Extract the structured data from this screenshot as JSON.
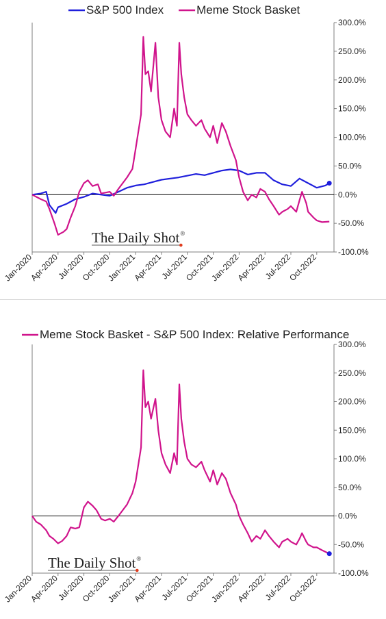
{
  "chart_data": [
    {
      "type": "line",
      "legend_position": "top",
      "y_axis_side": "right",
      "ylim": [
        -100,
        300
      ],
      "y_ticks": [
        -100,
        -50,
        0,
        50,
        100,
        150,
        200,
        250,
        300
      ],
      "y_tick_labels": [
        "-100.0%",
        "-50.0%",
        "0.0%",
        "50.0%",
        "100.0%",
        "150.0%",
        "200.0%",
        "250.0%",
        "300.0%"
      ],
      "xlim": [
        "2020-01",
        "2022-12"
      ],
      "x_tick_labels": [
        "Jan-2020",
        "Apr-2020",
        "Jul-2020",
        "Oct-2020",
        "Jan-2021",
        "Apr-2021",
        "Jul-2021",
        "Oct-2021",
        "Jan-2022",
        "Apr-2022",
        "Jul-2022",
        "Oct-2022"
      ],
      "x_tick_dates": [
        "2020-01",
        "2020-04",
        "2020-07",
        "2020-10",
        "2021-01",
        "2021-04",
        "2021-07",
        "2021-10",
        "2022-01",
        "2022-04",
        "2022-07",
        "2022-10"
      ],
      "zero_line": true,
      "watermark": "The Daily Shot",
      "watermark_mark": "®",
      "series": [
        {
          "name": "S&P 500 Index",
          "color": "#1f1fdc",
          "points": [
            [
              "2020-01",
              0
            ],
            [
              "2020-02",
              2
            ],
            [
              "2020-02-20",
              5
            ],
            [
              "2020-03",
              -18
            ],
            [
              "2020-03-23",
              -32
            ],
            [
              "2020-04",
              -22
            ],
            [
              "2020-05",
              -16
            ],
            [
              "2020-06",
              -8
            ],
            [
              "2020-07",
              -4
            ],
            [
              "2020-08",
              2
            ],
            [
              "2020-09",
              0
            ],
            [
              "2020-10",
              -2
            ],
            [
              "2020-11",
              5
            ],
            [
              "2020-12",
              12
            ],
            [
              "2021-01",
              16
            ],
            [
              "2021-02",
              18
            ],
            [
              "2021-03",
              22
            ],
            [
              "2021-04",
              26
            ],
            [
              "2021-05",
              28
            ],
            [
              "2021-06",
              30
            ],
            [
              "2021-07",
              33
            ],
            [
              "2021-08",
              36
            ],
            [
              "2021-09",
              34
            ],
            [
              "2021-10",
              38
            ],
            [
              "2021-11",
              42
            ],
            [
              "2021-12",
              44
            ],
            [
              "2022-01",
              42
            ],
            [
              "2022-02",
              35
            ],
            [
              "2022-03",
              38
            ],
            [
              "2022-04",
              38
            ],
            [
              "2022-05",
              25
            ],
            [
              "2022-06",
              18
            ],
            [
              "2022-07",
              15
            ],
            [
              "2022-08",
              28
            ],
            [
              "2022-09",
              20
            ],
            [
              "2022-10",
              12
            ],
            [
              "2022-11",
              16
            ],
            [
              "2022-11-15",
              20
            ]
          ],
          "end_marker": true
        },
        {
          "name": "Meme Stock Basket",
          "color": "#d0148c",
          "points": [
            [
              "2020-01",
              0
            ],
            [
              "2020-02",
              -8
            ],
            [
              "2020-02-20",
              -12
            ],
            [
              "2020-03",
              -25
            ],
            [
              "2020-03-20",
              -52
            ],
            [
              "2020-04",
              -70
            ],
            [
              "2020-04-20",
              -65
            ],
            [
              "2020-05",
              -60
            ],
            [
              "2020-05-15",
              -40
            ],
            [
              "2020-06",
              -20
            ],
            [
              "2020-06-15",
              5
            ],
            [
              "2020-07",
              20
            ],
            [
              "2020-07-15",
              25
            ],
            [
              "2020-08",
              15
            ],
            [
              "2020-08-20",
              18
            ],
            [
              "2020-09",
              2
            ],
            [
              "2020-10",
              5
            ],
            [
              "2020-10-15",
              -2
            ],
            [
              "2020-11",
              10
            ],
            [
              "2020-12",
              30
            ],
            [
              "2020-12-20",
              45
            ],
            [
              "2021-01",
              80
            ],
            [
              "2021-01-20",
              140
            ],
            [
              "2021-01-28",
              275
            ],
            [
              "2021-02-05",
              210
            ],
            [
              "2021-02-15",
              215
            ],
            [
              "2021-02-25",
              180
            ],
            [
              "2021-03-10",
              265
            ],
            [
              "2021-03-20",
              170
            ],
            [
              "2021-04",
              130
            ],
            [
              "2021-04-15",
              110
            ],
            [
              "2021-05",
              100
            ],
            [
              "2021-05-15",
              150
            ],
            [
              "2021-05-25",
              120
            ],
            [
              "2021-06-03",
              265
            ],
            [
              "2021-06-10",
              210
            ],
            [
              "2021-06-20",
              170
            ],
            [
              "2021-07",
              140
            ],
            [
              "2021-07-15",
              130
            ],
            [
              "2021-08",
              120
            ],
            [
              "2021-08-20",
              130
            ],
            [
              "2021-09",
              115
            ],
            [
              "2021-09-20",
              100
            ],
            [
              "2021-10",
              120
            ],
            [
              "2021-10-15",
              90
            ],
            [
              "2021-11",
              125
            ],
            [
              "2021-11-15",
              110
            ],
            [
              "2021-12",
              85
            ],
            [
              "2021-12-20",
              60
            ],
            [
              "2022-01",
              30
            ],
            [
              "2022-01-15",
              5
            ],
            [
              "2022-02",
              -10
            ],
            [
              "2022-02-15",
              0
            ],
            [
              "2022-03",
              -5
            ],
            [
              "2022-03-15",
              10
            ],
            [
              "2022-04",
              5
            ],
            [
              "2022-04-15",
              -8
            ],
            [
              "2022-05",
              -20
            ],
            [
              "2022-05-20",
              -35
            ],
            [
              "2022-06",
              -30
            ],
            [
              "2022-06-20",
              -25
            ],
            [
              "2022-07",
              -20
            ],
            [
              "2022-07-20",
              -30
            ],
            [
              "2022-08",
              -10
            ],
            [
              "2022-08-10",
              5
            ],
            [
              "2022-08-25",
              -15
            ],
            [
              "2022-09",
              -30
            ],
            [
              "2022-09-20",
              -40
            ],
            [
              "2022-10",
              -45
            ],
            [
              "2022-10-20",
              -48
            ],
            [
              "2022-11-15",
              -47
            ]
          ]
        }
      ]
    },
    {
      "type": "line",
      "legend_position": "top",
      "y_axis_side": "right",
      "ylim": [
        -100,
        300
      ],
      "y_ticks": [
        -100,
        -50,
        0,
        50,
        100,
        150,
        200,
        250,
        300
      ],
      "y_tick_labels": [
        "-100.0%",
        "-50.0%",
        "0.0%",
        "50.0%",
        "100.0%",
        "150.0%",
        "200.0%",
        "250.0%",
        "300.0%"
      ],
      "xlim": [
        "2020-01",
        "2022-12"
      ],
      "x_tick_labels": [
        "Jan-2020",
        "Apr-2020",
        "Jul-2020",
        "Oct-2020",
        "Jan-2021",
        "Apr-2021",
        "Jul-2021",
        "Oct-2021",
        "Jan-2022",
        "Apr-2022",
        "Jul-2022",
        "Oct-2022"
      ],
      "x_tick_dates": [
        "2020-01",
        "2020-04",
        "2020-07",
        "2020-10",
        "2021-01",
        "2021-04",
        "2021-07",
        "2021-10",
        "2022-01",
        "2022-04",
        "2022-07",
        "2022-10"
      ],
      "zero_line": true,
      "watermark": "The Daily Shot",
      "watermark_mark": "®",
      "series": [
        {
          "name": "Meme Stock Basket - S&P 500 Index:   Relative Performance",
          "color": "#d0148c",
          "end_marker_color": "#1f1fdc",
          "points": [
            [
              "2020-01",
              0
            ],
            [
              "2020-01-15",
              -10
            ],
            [
              "2020-02",
              -15
            ],
            [
              "2020-02-20",
              -25
            ],
            [
              "2020-03",
              -35
            ],
            [
              "2020-03-15",
              -40
            ],
            [
              "2020-04",
              -48
            ],
            [
              "2020-04-15",
              -44
            ],
            [
              "2020-05",
              -35
            ],
            [
              "2020-05-15",
              -20
            ],
            [
              "2020-06",
              -22
            ],
            [
              "2020-06-15",
              -20
            ],
            [
              "2020-07",
              15
            ],
            [
              "2020-07-15",
              25
            ],
            [
              "2020-08",
              18
            ],
            [
              "2020-08-15",
              10
            ],
            [
              "2020-09",
              -5
            ],
            [
              "2020-09-15",
              -8
            ],
            [
              "2020-10",
              -5
            ],
            [
              "2020-10-15",
              -10
            ],
            [
              "2020-11",
              0
            ],
            [
              "2020-12",
              20
            ],
            [
              "2020-12-20",
              40
            ],
            [
              "2021-01",
              60
            ],
            [
              "2021-01-20",
              120
            ],
            [
              "2021-01-28",
              255
            ],
            [
              "2021-02-05",
              190
            ],
            [
              "2021-02-15",
              200
            ],
            [
              "2021-02-25",
              170
            ],
            [
              "2021-03-10",
              205
            ],
            [
              "2021-03-20",
              150
            ],
            [
              "2021-04",
              110
            ],
            [
              "2021-04-15",
              90
            ],
            [
              "2021-05",
              75
            ],
            [
              "2021-05-15",
              110
            ],
            [
              "2021-05-25",
              90
            ],
            [
              "2021-06-03",
              230
            ],
            [
              "2021-06-10",
              170
            ],
            [
              "2021-06-20",
              130
            ],
            [
              "2021-07",
              100
            ],
            [
              "2021-07-15",
              90
            ],
            [
              "2021-08",
              85
            ],
            [
              "2021-08-20",
              95
            ],
            [
              "2021-09",
              80
            ],
            [
              "2021-09-20",
              60
            ],
            [
              "2021-10",
              80
            ],
            [
              "2021-10-15",
              55
            ],
            [
              "2021-11",
              75
            ],
            [
              "2021-11-15",
              65
            ],
            [
              "2021-12",
              40
            ],
            [
              "2021-12-20",
              20
            ],
            [
              "2022-01",
              0
            ],
            [
              "2022-01-15",
              -15
            ],
            [
              "2022-02",
              -30
            ],
            [
              "2022-02-15",
              -45
            ],
            [
              "2022-03",
              -35
            ],
            [
              "2022-03-15",
              -40
            ],
            [
              "2022-04",
              -25
            ],
            [
              "2022-04-15",
              -35
            ],
            [
              "2022-05",
              -45
            ],
            [
              "2022-05-20",
              -55
            ],
            [
              "2022-06",
              -45
            ],
            [
              "2022-06-20",
              -40
            ],
            [
              "2022-07",
              -45
            ],
            [
              "2022-07-20",
              -50
            ],
            [
              "2022-08",
              -40
            ],
            [
              "2022-08-10",
              -30
            ],
            [
              "2022-08-25",
              -45
            ],
            [
              "2022-09",
              -50
            ],
            [
              "2022-09-20",
              -55
            ],
            [
              "2022-10",
              -55
            ],
            [
              "2022-10-20",
              -60
            ],
            [
              "2022-11-15",
              -66
            ]
          ],
          "end_marker": true
        }
      ]
    }
  ]
}
